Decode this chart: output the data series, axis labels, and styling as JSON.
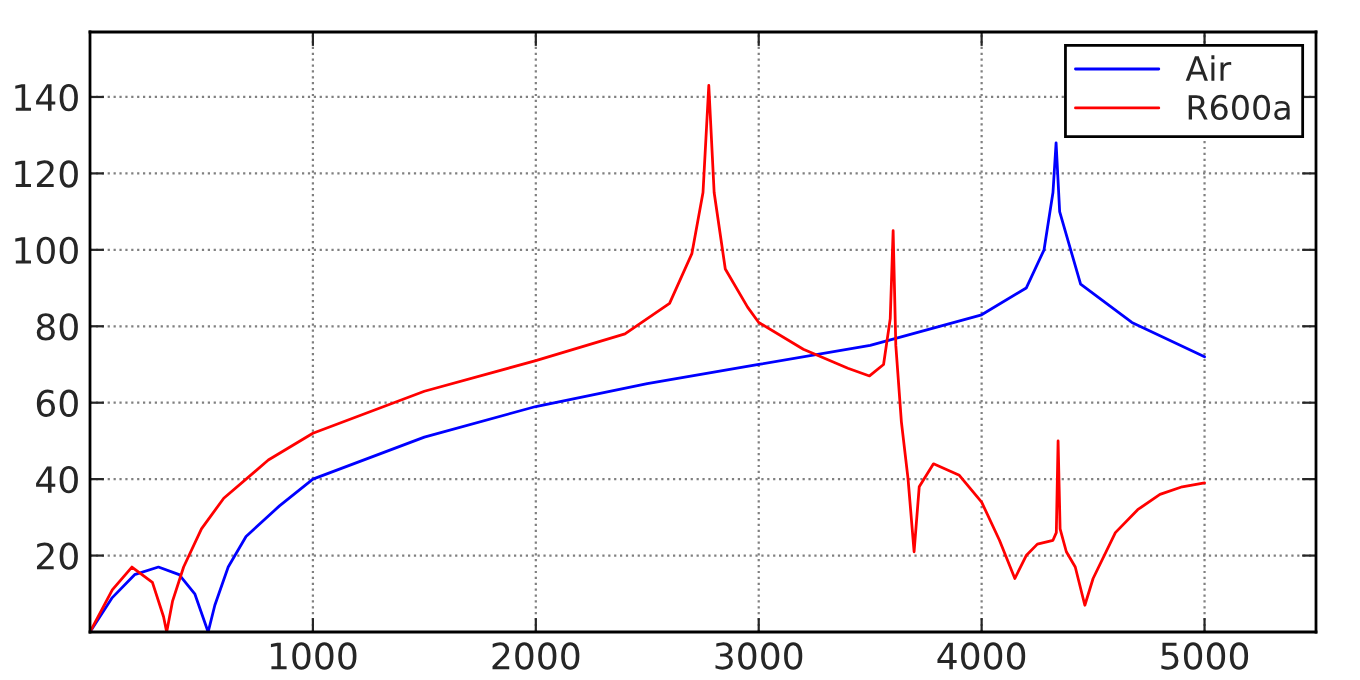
{
  "chart_data": {
    "type": "line",
    "legend": "top right",
    "grid": true,
    "line_style": "solid",
    "xlim": [
      0,
      5500
    ],
    "xticks": [
      1000,
      2000,
      3000,
      4000,
      5000
    ],
    "ylim": [
      0,
      157
    ],
    "yticks": [
      20,
      40,
      60,
      80,
      100,
      120,
      140
    ],
    "series": [
      {
        "name": "Air",
        "color": "#0000ff",
        "x": [
          0,
          100,
          200,
          307,
          400,
          470,
          530,
          560,
          620,
          700,
          850,
          1000,
          1500,
          2000,
          2500,
          3000,
          3500,
          4000,
          4200,
          4280,
          4320,
          4334,
          4350,
          4444,
          4674,
          5000
        ],
        "values": [
          0,
          9,
          15,
          17,
          15,
          10,
          0,
          7,
          17,
          25,
          33,
          40,
          51,
          59,
          65,
          70,
          75,
          83,
          90,
          100,
          115,
          128,
          110,
          91,
          81,
          72
        ]
      },
      {
        "name": "R600a",
        "color": "#ff0000",
        "x": [
          0,
          100,
          188,
          280,
          330,
          344,
          370,
          420,
          500,
          600,
          800,
          1000,
          1500,
          2000,
          2400,
          2600,
          2700,
          2750,
          2776,
          2800,
          2850,
          2950,
          3000,
          3200,
          3400,
          3497,
          3560,
          3590,
          3603,
          3615,
          3640,
          3670,
          3697,
          3720,
          3784,
          3900,
          4000,
          4080,
          4149,
          4200,
          4250,
          4320,
          4335,
          4343,
          4352,
          4380,
          4420,
          4463,
          4500,
          4600,
          4700,
          4800,
          4900,
          5000
        ],
        "values": [
          0,
          11,
          17,
          13,
          4,
          0,
          8,
          17,
          27,
          35,
          45,
          52,
          63,
          71,
          78,
          86,
          99,
          115,
          143,
          115,
          95,
          85,
          81,
          74,
          69,
          67,
          70,
          82,
          105,
          75,
          55,
          40,
          21,
          38,
          44,
          41,
          34,
          24,
          14,
          20,
          23,
          24,
          26,
          50,
          27,
          21,
          17,
          7,
          14,
          26,
          32,
          36,
          38,
          39
        ]
      }
    ]
  }
}
